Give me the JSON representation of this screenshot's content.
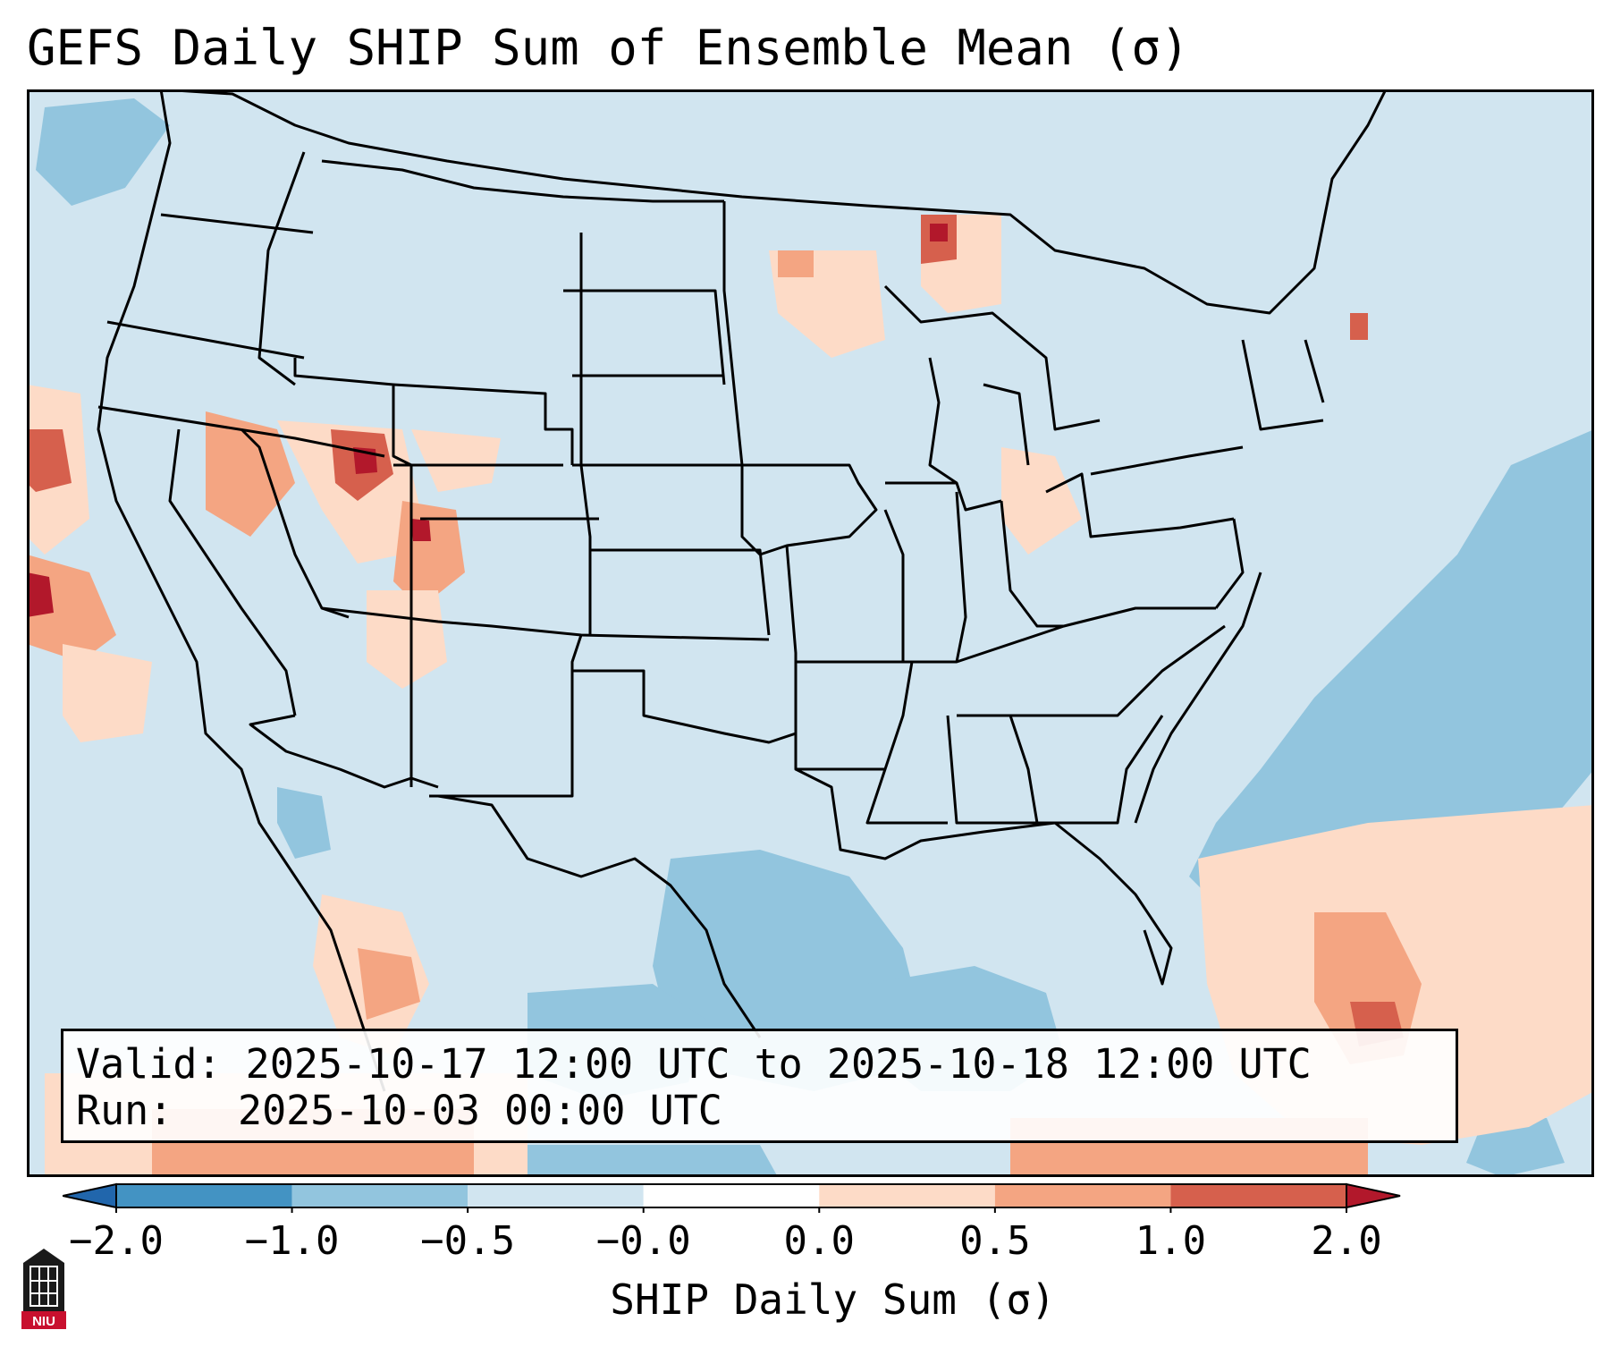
{
  "title": "GEFS Daily SHIP Sum of Ensemble Mean (σ)",
  "info": {
    "valid_label": "Valid:",
    "valid_value": "2025-10-17 12:00 UTC to 2025-10-18 12:00 UTC",
    "run_label": "Run:",
    "run_value": "2025-10-03 00:00 UTC"
  },
  "colorbar": {
    "label": "SHIP Daily Sum (σ)",
    "ticks": [
      "−2.0",
      "−1.0",
      "−0.5",
      "−0.0",
      "0.0",
      "0.5",
      "1.0",
      "2.0"
    ],
    "colors": [
      "#2166ac",
      "#4393c3",
      "#92c5de",
      "#d1e5f0",
      "#ffffff",
      "#fddbc7",
      "#f4a582",
      "#d6604d",
      "#b2182b"
    ],
    "extend": "both"
  },
  "map": {
    "background_color": "#d1e5f0",
    "region": "Contiguous United States"
  },
  "logo": {
    "text": "NIU",
    "color": "#c8102e"
  }
}
